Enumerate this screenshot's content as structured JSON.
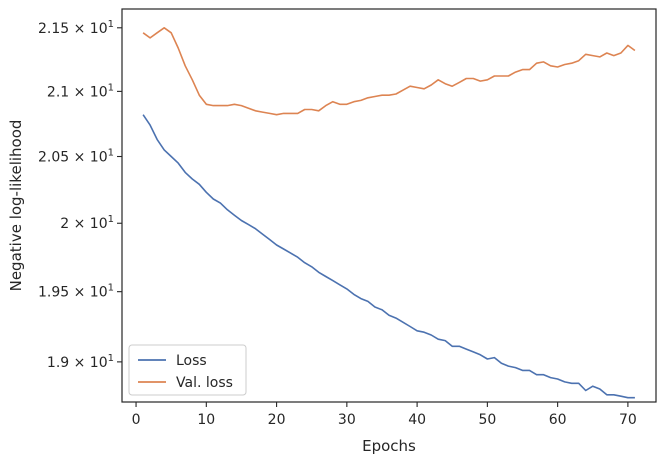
{
  "chart_data": {
    "type": "line",
    "xlabel": "Epochs",
    "ylabel": "Negative log-likelihood",
    "xlim": [
      -2,
      74
    ],
    "ylim": [
      18.72,
      21.65
    ],
    "y_scale": "log",
    "x_ticks": [
      0,
      10,
      20,
      30,
      40,
      50,
      60,
      70
    ],
    "x_tick_labels": [
      "0",
      "10",
      "20",
      "30",
      "40",
      "50",
      "60",
      "70"
    ],
    "y_ticks": [
      19.0,
      19.5,
      20.0,
      20.5,
      21.0,
      21.5
    ],
    "y_tick_labels": [
      {
        "mantissa": "1.9",
        "base": "10",
        "exp": "1"
      },
      {
        "mantissa": "1.95",
        "base": "10",
        "exp": "1"
      },
      {
        "mantissa": "2",
        "base": "10",
        "exp": "1"
      },
      {
        "mantissa": "2.05",
        "base": "10",
        "exp": "1"
      },
      {
        "mantissa": "2.1",
        "base": "10",
        "exp": "1"
      },
      {
        "mantissa": "2.15",
        "base": "10",
        "exp": "1"
      }
    ],
    "grid": false,
    "legend_position": "lower-left",
    "series": [
      {
        "name": "Loss",
        "color": "#4c72b0",
        "x": [
          1,
          2,
          3,
          4,
          5,
          6,
          7,
          8,
          9,
          10,
          11,
          12,
          13,
          14,
          15,
          16,
          17,
          18,
          19,
          20,
          21,
          22,
          23,
          24,
          25,
          26,
          27,
          28,
          29,
          30,
          31,
          32,
          33,
          34,
          35,
          36,
          37,
          38,
          39,
          40,
          41,
          42,
          43,
          44,
          45,
          46,
          47,
          48,
          49,
          50,
          51,
          52,
          53,
          54,
          55,
          56,
          57,
          58,
          59,
          60,
          61,
          62,
          63,
          64,
          65,
          66,
          67,
          68,
          69,
          70,
          71
        ],
        "y": [
          20.82,
          20.74,
          20.63,
          20.55,
          20.5,
          20.45,
          20.38,
          20.33,
          20.29,
          20.23,
          20.18,
          20.15,
          20.1,
          20.06,
          20.02,
          19.99,
          19.96,
          19.92,
          19.88,
          19.84,
          19.81,
          19.78,
          19.75,
          19.71,
          19.68,
          19.64,
          19.61,
          19.58,
          19.55,
          19.52,
          19.48,
          19.45,
          19.43,
          19.39,
          19.37,
          19.33,
          19.31,
          19.28,
          19.25,
          19.22,
          19.21,
          19.19,
          19.16,
          19.15,
          19.11,
          19.11,
          19.09,
          19.07,
          19.05,
          19.02,
          19.03,
          18.99,
          18.97,
          18.96,
          18.94,
          18.94,
          18.91,
          18.91,
          18.89,
          18.88,
          18.86,
          18.85,
          18.85,
          18.8,
          18.83,
          18.81,
          18.77,
          18.77,
          18.76,
          18.75,
          18.75
        ]
      },
      {
        "name": "Val. loss",
        "color": "#dd8452",
        "x": [
          1,
          2,
          3,
          4,
          5,
          6,
          7,
          8,
          9,
          10,
          11,
          12,
          13,
          14,
          15,
          16,
          17,
          18,
          19,
          20,
          21,
          22,
          23,
          24,
          25,
          26,
          27,
          28,
          29,
          30,
          31,
          32,
          33,
          34,
          35,
          36,
          37,
          38,
          39,
          40,
          41,
          42,
          43,
          44,
          45,
          46,
          47,
          48,
          49,
          50,
          51,
          52,
          53,
          54,
          55,
          56,
          57,
          58,
          59,
          60,
          61,
          62,
          63,
          64,
          65,
          66,
          67,
          68,
          69,
          70,
          71
        ],
        "y": [
          21.46,
          21.42,
          21.46,
          21.5,
          21.46,
          21.34,
          21.2,
          21.09,
          20.97,
          20.9,
          20.89,
          20.89,
          20.89,
          20.9,
          20.89,
          20.87,
          20.85,
          20.84,
          20.83,
          20.82,
          20.83,
          20.83,
          20.83,
          20.86,
          20.86,
          20.85,
          20.89,
          20.92,
          20.9,
          20.9,
          20.92,
          20.93,
          20.95,
          20.96,
          20.97,
          20.97,
          20.98,
          21.01,
          21.04,
          21.03,
          21.02,
          21.05,
          21.09,
          21.06,
          21.04,
          21.07,
          21.1,
          21.1,
          21.08,
          21.09,
          21.12,
          21.12,
          21.12,
          21.15,
          21.17,
          21.17,
          21.22,
          21.23,
          21.2,
          21.19,
          21.21,
          21.22,
          21.24,
          21.29,
          21.28,
          21.27,
          21.3,
          21.28,
          21.3,
          21.36,
          21.32
        ]
      }
    ]
  }
}
